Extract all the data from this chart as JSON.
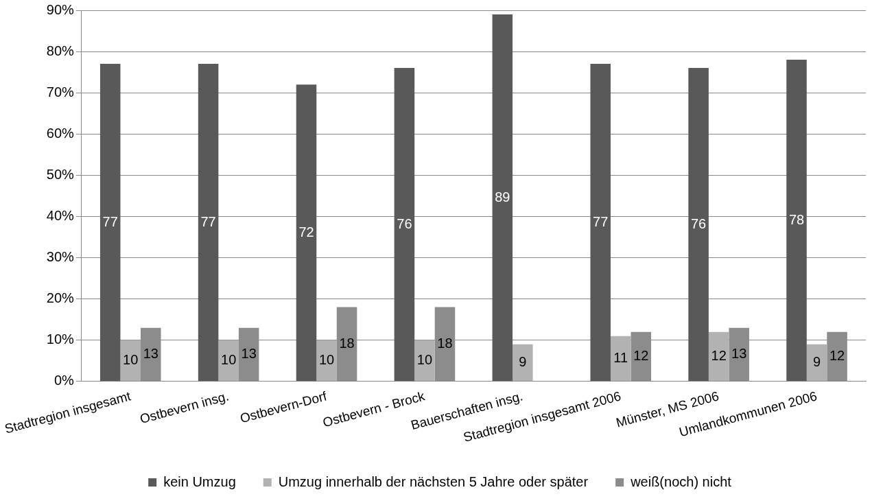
{
  "chart_data": {
    "type": "bar",
    "categories": [
      "Stadtregion insgesamt",
      "Ostbevern insg.",
      "Ostbevern-Dorf",
      "Ostbevern - Brock",
      "Bauerschaften insg.",
      "Stadtregion insgesamt 2006",
      "Münster, MS 2006",
      "Umlandkommunen 2006"
    ],
    "series": [
      {
        "name": "kein Umzug",
        "color": "#595959",
        "values": [
          77,
          77,
          72,
          76,
          89,
          77,
          76,
          78
        ]
      },
      {
        "name": "Umzug innerhalb der nächsten 5 Jahre oder später",
        "color": "#b2b2b2",
        "values": [
          10,
          10,
          10,
          10,
          9,
          11,
          12,
          9
        ]
      },
      {
        "name": "weiß(noch) nicht",
        "color": "#8c8c8c",
        "values": [
          13,
          13,
          18,
          18,
          null,
          12,
          13,
          12
        ]
      }
    ],
    "ylim": [
      0,
      90
    ],
    "yticks": [
      {
        "value": 0,
        "label": "0%"
      },
      {
        "value": 10,
        "label": "10%"
      },
      {
        "value": 20,
        "label": "20%"
      },
      {
        "value": 30,
        "label": "30%"
      },
      {
        "value": 40,
        "label": "40%"
      },
      {
        "value": 50,
        "label": "50%"
      },
      {
        "value": 60,
        "label": "60%"
      },
      {
        "value": 70,
        "label": "70%"
      },
      {
        "value": 80,
        "label": "80%"
      },
      {
        "value": 90,
        "label": "90%"
      }
    ],
    "grid": "y",
    "legend": "bottom",
    "data_labels": true
  }
}
